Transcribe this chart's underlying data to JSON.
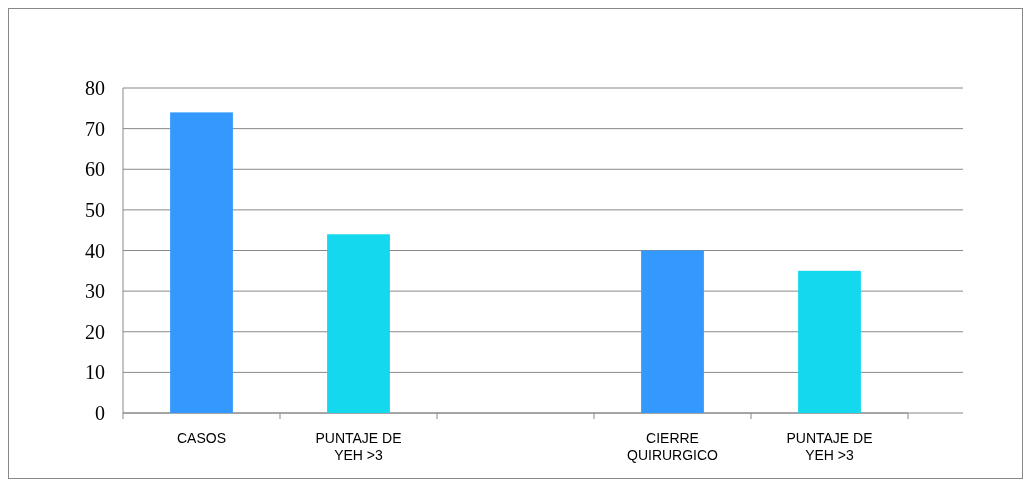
{
  "chart_data": {
    "type": "bar",
    "categories": [
      "CASOS",
      "PUNTAJE DE YEH >3",
      null,
      "CIERRE QUIRURGICO",
      "PUNTAJE DE YEH >3"
    ],
    "values": [
      74,
      44,
      null,
      40,
      35
    ],
    "colors": [
      "#3399ff",
      "#14d9ee",
      null,
      "#3399ff",
      "#14d9ee"
    ],
    "ylim": [
      0,
      80
    ],
    "yticks": [
      0,
      10,
      20,
      30,
      40,
      50,
      60,
      70,
      80
    ],
    "grid": "y"
  }
}
